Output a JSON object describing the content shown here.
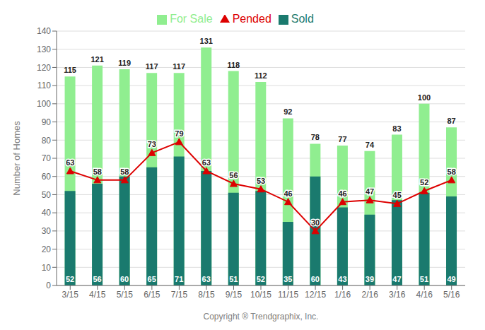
{
  "chart_data": {
    "type": "bar",
    "xlabel": "Copyright ® Trendgraphix, Inc.",
    "ylabel": "Number of Homes",
    "categories": [
      "3/15",
      "4/15",
      "5/15",
      "6/15",
      "7/15",
      "8/15",
      "9/15",
      "10/15",
      "11/15",
      "12/15",
      "1/16",
      "2/16",
      "3/16",
      "4/16",
      "5/16"
    ],
    "series": [
      {
        "name": "For Sale",
        "type": "bar",
        "color": "#90ee90",
        "values": [
          115,
          121,
          119,
          117,
          117,
          131,
          118,
          112,
          92,
          78,
          77,
          74,
          83,
          100,
          87
        ]
      },
      {
        "name": "Sold",
        "type": "bar",
        "color": "#1a7a6e",
        "values": [
          52,
          56,
          60,
          65,
          71,
          63,
          51,
          52,
          35,
          60,
          43,
          39,
          47,
          51,
          49
        ]
      },
      {
        "name": "Pended",
        "type": "line",
        "color": "#dd0000",
        "marker": "triangle",
        "values": [
          63,
          58,
          58,
          73,
          79,
          63,
          56,
          53,
          46,
          30,
          46,
          47,
          45,
          52,
          58
        ]
      }
    ],
    "ylim": [
      0,
      140
    ],
    "yticks": [
      0,
      10,
      20,
      30,
      40,
      50,
      60,
      70,
      80,
      90,
      100,
      110,
      120,
      130,
      140
    ],
    "grid": true,
    "legend": "top",
    "data_labels": true
  }
}
